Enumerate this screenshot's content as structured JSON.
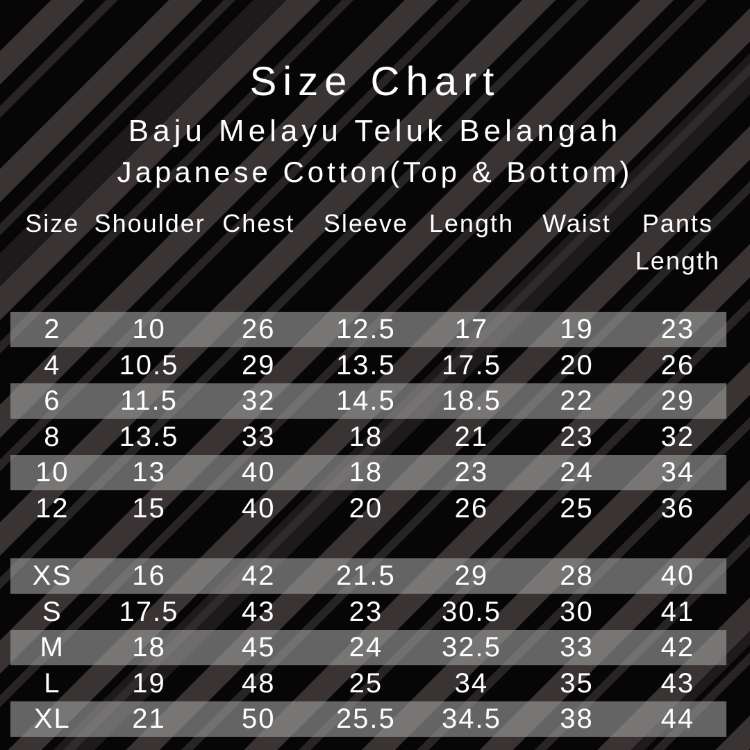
{
  "title": "Size Chart",
  "subtitle_product": "Baju Melayu Teluk Belangah",
  "subtitle_material": "Japanese Cotton(Top & Bottom)",
  "chart_data": {
    "type": "table",
    "title": "Size Chart",
    "subtitle": "Baju Melayu Teluk Belangah",
    "subtitle2": "Japanese Cotton(Top & Bottom)",
    "columns": [
      "Size",
      "Shoulder",
      "Chest",
      "Sleeve",
      "Length",
      "Waist",
      "Pants Length"
    ],
    "groups": [
      {
        "name": "child-sizes",
        "rows": [
          [
            "2",
            "10",
            "26",
            "12.5",
            "17",
            "19",
            "23"
          ],
          [
            "4",
            "10.5",
            "29",
            "13.5",
            "17.5",
            "20",
            "26"
          ],
          [
            "6",
            "11.5",
            "32",
            "14.5",
            "18.5",
            "22",
            "29"
          ],
          [
            "8",
            "13.5",
            "33",
            "18",
            "21",
            "23",
            "32"
          ],
          [
            "10",
            "13",
            "40",
            "18",
            "23",
            "24",
            "34"
          ],
          [
            "12",
            "15",
            "40",
            "20",
            "26",
            "25",
            "36"
          ]
        ]
      },
      {
        "name": "adult-sizes",
        "rows": [
          [
            "XS",
            "16",
            "42",
            "21.5",
            "29",
            "28",
            "40"
          ],
          [
            "S",
            "17.5",
            "43",
            "23",
            "30.5",
            "30",
            "41"
          ],
          [
            "M",
            "18",
            "45",
            "24",
            "32.5",
            "33",
            "42"
          ],
          [
            "L",
            "19",
            "48",
            "25",
            "34",
            "35",
            "43"
          ],
          [
            "XL",
            "21",
            "50",
            "25.5",
            "34.5",
            "38",
            "44"
          ]
        ]
      }
    ],
    "layout_hints": {
      "highlighted_rows": "first row of each group, then alternating",
      "group_gap_between": "child-sizes and adult-sizes"
    }
  },
  "colors": {
    "background": "#070606",
    "stripe": "#3a3334",
    "row_highlight": "#9e9e9e",
    "text": "#ffffff"
  }
}
